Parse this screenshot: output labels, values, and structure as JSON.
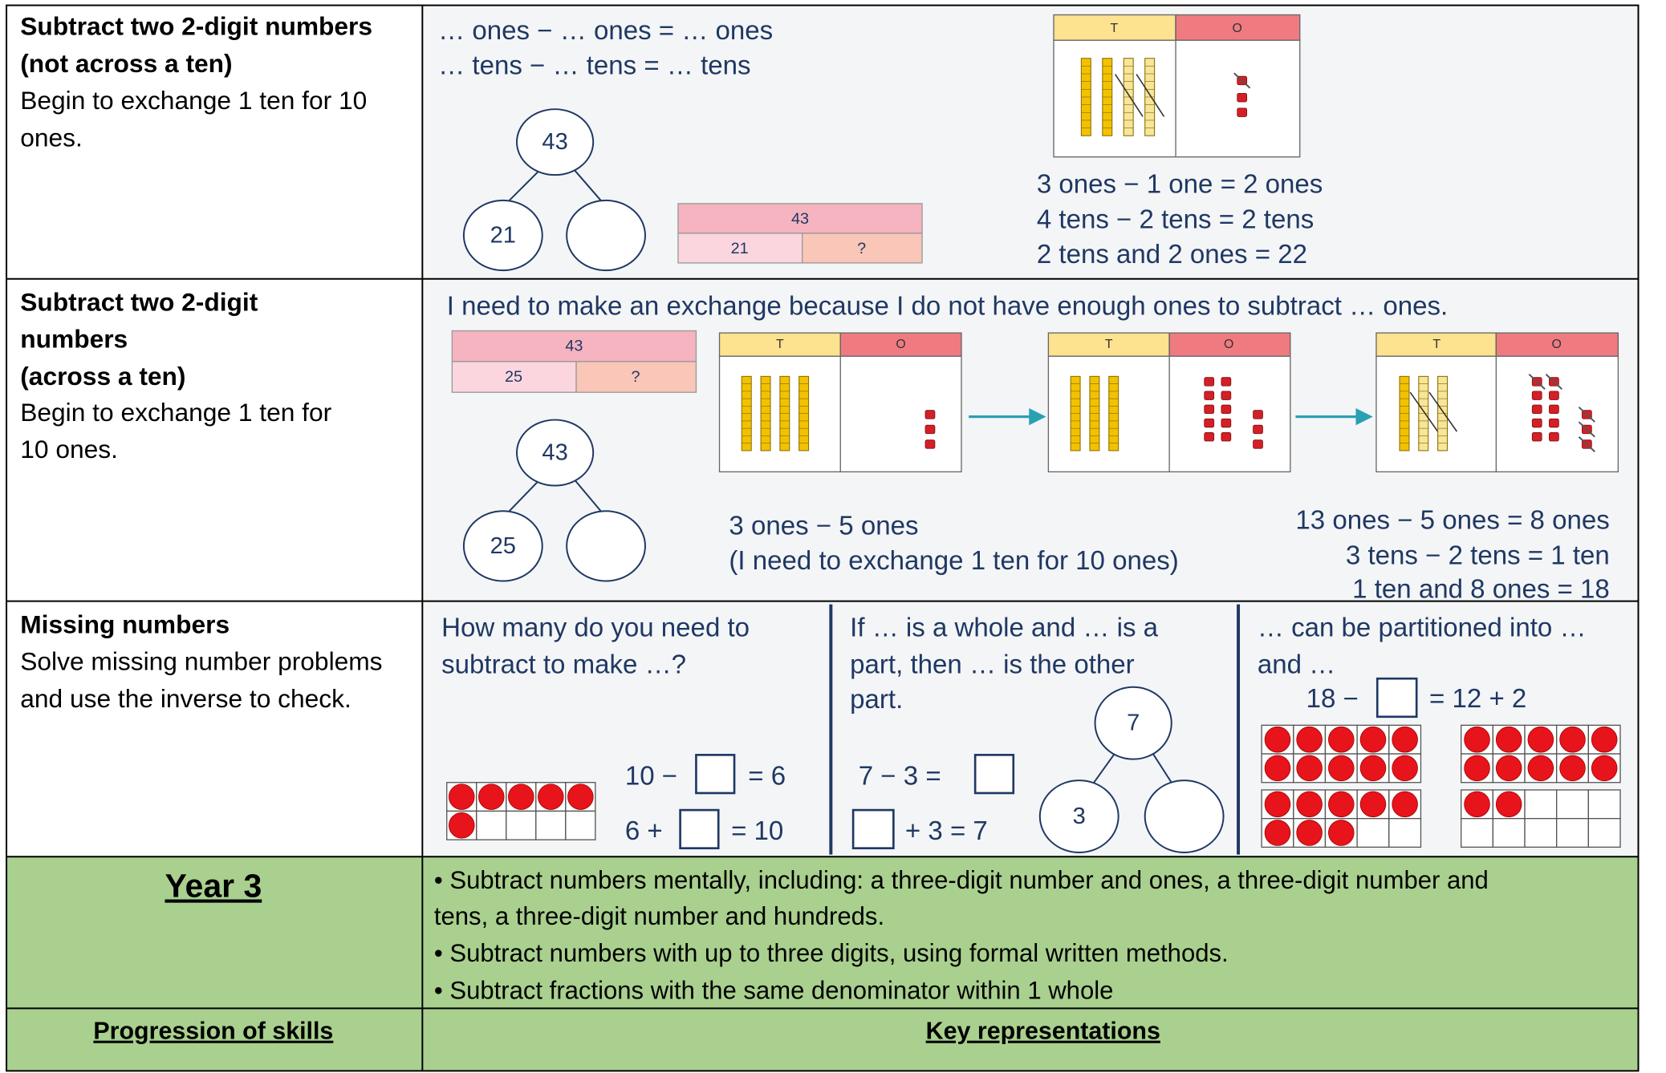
{
  "rows": [
    {
      "skill": {
        "title": [
          "Subtract two 2-digit numbers",
          "(not across a ten)"
        ],
        "text": [
          "Begin to exchange 1 ten for 10",
          "ones."
        ]
      },
      "representation": {
        "sentences": [
          "… ones − … ones = … ones",
          "… tens − … tens = … tens"
        ],
        "part_whole": {
          "whole": "43",
          "parts": [
            "21"
          ]
        },
        "bar_model": {
          "whole": "43",
          "parts": [
            "21",
            "?"
          ]
        },
        "place_value": {
          "headers": [
            "T",
            "O"
          ]
        },
        "equations": [
          "3 ones − 1 one = 2 ones",
          "4 tens − 2 tens = 2 tens",
          "2 tens and 2 ones = 22"
        ]
      }
    },
    {
      "skill": {
        "title": [
          "Subtract two 2-digit",
          "numbers",
          "(across a ten)"
        ],
        "text": [
          "Begin to exchange 1 ten for",
          "10 ones."
        ]
      },
      "representation": {
        "sentence": "I need to make an exchange because I do not have enough ones to subtract … ones.",
        "bar_model": {
          "whole": "43",
          "parts": [
            "25",
            "?"
          ]
        },
        "part_whole": {
          "whole": "43",
          "parts": [
            "25"
          ]
        },
        "place_value": [
          {
            "headers": [
              "T",
              "O"
            ]
          },
          {
            "headers": [
              "T",
              "O"
            ]
          },
          {
            "headers": [
              "T",
              "O"
            ]
          }
        ],
        "left_equations": [
          "3 ones − 5 ones",
          "(I need to exchange 1 ten for 10  ones)"
        ],
        "right_equations": [
          "13 ones − 5 ones  = 8 ones",
          "3 tens − 2 tens = 1 ten",
          "1 ten and 8 ones = 18"
        ]
      }
    },
    {
      "skill": {
        "title": [
          "Missing numbers"
        ],
        "text": [
          "Solve missing number problems",
          "and use the inverse to check."
        ]
      },
      "representation": {
        "panels": [
          {
            "text": [
              "How many do you need to",
              "subtract to make …?"
            ],
            "equations": [
              [
                "10 −",
                "= 6"
              ],
              [
                "6 +",
                "= 10"
              ]
            ]
          },
          {
            "text": [
              "If … is a whole and … is a",
              "part, then … is the other",
              "part."
            ],
            "equations": [
              [
                "7 − 3 ="
              ],
              [
                "+ 3  = 7"
              ]
            ],
            "part_whole": {
              "whole": "7",
              "parts": [
                "3"
              ]
            }
          },
          {
            "text": [
              "… can be partitioned into …",
              "and …"
            ],
            "equations": [
              [
                "18 −",
                "= 12 + 2"
              ]
            ]
          }
        ]
      }
    }
  ],
  "year": {
    "title": "Year 3",
    "objectives": [
      "• Subtract numbers mentally, including: a three-digit number and ones, a three-digit number and",
      "tens, a three-digit number and hundreds.",
      "• Subtract numbers with up to three digits, using formal written methods.",
      "• Subtract fractions with the same denominator within 1 whole"
    ]
  },
  "headers": [
    "Progression of skills",
    "Key representations"
  ]
}
